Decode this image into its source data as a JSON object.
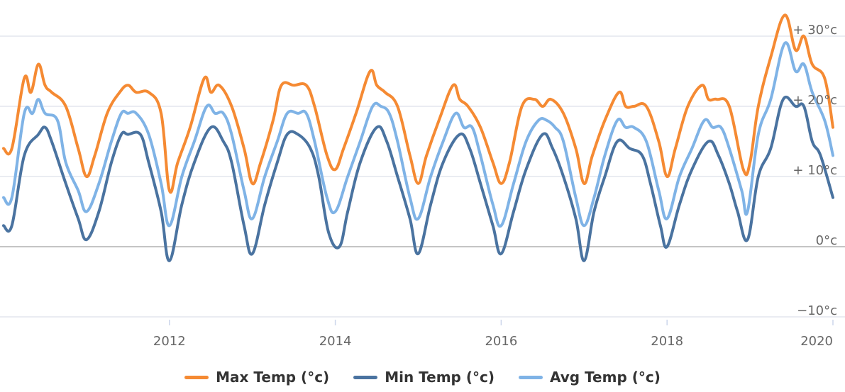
{
  "chart_data": {
    "type": "line",
    "y_axis": {
      "min": -10,
      "max": 35,
      "ticks": [
        {
          "value": -10,
          "label": "−10°c"
        },
        {
          "value": 0,
          "label": "0°c"
        },
        {
          "value": 10,
          "label": "+ 10°c"
        },
        {
          "value": 20,
          "label": "+ 20°c"
        },
        {
          "value": 30,
          "label": "+ 30°c"
        }
      ],
      "position": "right"
    },
    "x_axis": {
      "min": 2010.0,
      "max": 2020.0,
      "ticks": [
        {
          "value": 2012,
          "label": "2012"
        },
        {
          "value": 2014,
          "label": "2014"
        },
        {
          "value": 2016,
          "label": "2016"
        },
        {
          "value": 2018,
          "label": "2018"
        },
        {
          "value": 2020,
          "label": "2020"
        }
      ]
    },
    "grid": true,
    "legend": "bottom-center",
    "series": [
      {
        "name": "Max Temp (°c)",
        "color": "#f58a33",
        "points": [
          [
            2010.0,
            14
          ],
          [
            2010.1,
            14
          ],
          [
            2010.25,
            24
          ],
          [
            2010.33,
            22
          ],
          [
            2010.42,
            26
          ],
          [
            2010.5,
            23
          ],
          [
            2010.58,
            22
          ],
          [
            2010.75,
            20
          ],
          [
            2010.9,
            14
          ],
          [
            2011.0,
            10
          ],
          [
            2011.1,
            13
          ],
          [
            2011.25,
            19
          ],
          [
            2011.4,
            22
          ],
          [
            2011.5,
            23
          ],
          [
            2011.6,
            22
          ],
          [
            2011.75,
            22
          ],
          [
            2011.9,
            19
          ],
          [
            2012.0,
            8
          ],
          [
            2012.1,
            12
          ],
          [
            2012.25,
            17
          ],
          [
            2012.42,
            24
          ],
          [
            2012.5,
            22
          ],
          [
            2012.6,
            23
          ],
          [
            2012.75,
            20
          ],
          [
            2012.9,
            14
          ],
          [
            2013.0,
            9
          ],
          [
            2013.1,
            12
          ],
          [
            2013.25,
            18
          ],
          [
            2013.35,
            23
          ],
          [
            2013.5,
            23
          ],
          [
            2013.65,
            23
          ],
          [
            2013.75,
            20
          ],
          [
            2013.9,
            13
          ],
          [
            2014.0,
            11
          ],
          [
            2014.1,
            14
          ],
          [
            2014.25,
            19
          ],
          [
            2014.42,
            25
          ],
          [
            2014.5,
            23
          ],
          [
            2014.6,
            22
          ],
          [
            2014.75,
            20
          ],
          [
            2014.9,
            13
          ],
          [
            2015.0,
            9
          ],
          [
            2015.1,
            13
          ],
          [
            2015.25,
            18
          ],
          [
            2015.42,
            23
          ],
          [
            2015.5,
            21
          ],
          [
            2015.6,
            20
          ],
          [
            2015.75,
            17
          ],
          [
            2015.9,
            12
          ],
          [
            2016.0,
            9
          ],
          [
            2016.1,
            12
          ],
          [
            2016.25,
            20
          ],
          [
            2016.4,
            21
          ],
          [
            2016.5,
            20
          ],
          [
            2016.6,
            21
          ],
          [
            2016.75,
            19
          ],
          [
            2016.9,
            14
          ],
          [
            2017.0,
            9
          ],
          [
            2017.1,
            13
          ],
          [
            2017.25,
            18
          ],
          [
            2017.42,
            22
          ],
          [
            2017.5,
            20
          ],
          [
            2017.6,
            20
          ],
          [
            2017.75,
            20
          ],
          [
            2017.9,
            15
          ],
          [
            2018.0,
            10
          ],
          [
            2018.1,
            14
          ],
          [
            2018.25,
            20
          ],
          [
            2018.42,
            23
          ],
          [
            2018.5,
            21
          ],
          [
            2018.6,
            21
          ],
          [
            2018.75,
            20
          ],
          [
            2018.92,
            11
          ],
          [
            2019.0,
            12
          ],
          [
            2019.1,
            20
          ],
          [
            2019.25,
            27
          ],
          [
            2019.42,
            33
          ],
          [
            2019.55,
            28
          ],
          [
            2019.65,
            30
          ],
          [
            2019.75,
            26
          ],
          [
            2019.9,
            24
          ],
          [
            2020.0,
            17
          ]
        ]
      },
      {
        "name": "Min Temp (°c)",
        "color": "#4a73a0",
        "points": [
          [
            2010.0,
            3
          ],
          [
            2010.1,
            3
          ],
          [
            2010.25,
            13
          ],
          [
            2010.42,
            16
          ],
          [
            2010.5,
            17
          ],
          [
            2010.58,
            15
          ],
          [
            2010.75,
            9
          ],
          [
            2010.9,
            4
          ],
          [
            2011.0,
            1
          ],
          [
            2011.15,
            5
          ],
          [
            2011.3,
            12
          ],
          [
            2011.42,
            16
          ],
          [
            2011.5,
            16
          ],
          [
            2011.65,
            16
          ],
          [
            2011.75,
            12
          ],
          [
            2011.9,
            5
          ],
          [
            2012.0,
            -2
          ],
          [
            2012.15,
            6
          ],
          [
            2012.3,
            12
          ],
          [
            2012.5,
            17
          ],
          [
            2012.65,
            15
          ],
          [
            2012.75,
            12
          ],
          [
            2012.9,
            3
          ],
          [
            2013.0,
            -1
          ],
          [
            2013.15,
            6
          ],
          [
            2013.3,
            12
          ],
          [
            2013.42,
            16
          ],
          [
            2013.55,
            16
          ],
          [
            2013.7,
            14
          ],
          [
            2013.8,
            10
          ],
          [
            2013.92,
            2
          ],
          [
            2014.05,
            0
          ],
          [
            2014.15,
            5
          ],
          [
            2014.3,
            12
          ],
          [
            2014.5,
            17
          ],
          [
            2014.62,
            15
          ],
          [
            2014.75,
            10
          ],
          [
            2014.9,
            4
          ],
          [
            2015.0,
            -1
          ],
          [
            2015.15,
            6
          ],
          [
            2015.3,
            12
          ],
          [
            2015.5,
            16
          ],
          [
            2015.62,
            14
          ],
          [
            2015.75,
            9
          ],
          [
            2015.9,
            3
          ],
          [
            2016.0,
            -1
          ],
          [
            2016.15,
            5
          ],
          [
            2016.3,
            11
          ],
          [
            2016.5,
            16
          ],
          [
            2016.62,
            14
          ],
          [
            2016.75,
            10
          ],
          [
            2016.9,
            4
          ],
          [
            2017.0,
            -2
          ],
          [
            2017.12,
            5
          ],
          [
            2017.25,
            10
          ],
          [
            2017.4,
            15
          ],
          [
            2017.55,
            14
          ],
          [
            2017.7,
            13
          ],
          [
            2017.8,
            9
          ],
          [
            2017.92,
            3
          ],
          [
            2018.0,
            0
          ],
          [
            2018.15,
            6
          ],
          [
            2018.3,
            11
          ],
          [
            2018.5,
            15
          ],
          [
            2018.62,
            13
          ],
          [
            2018.75,
            9
          ],
          [
            2018.85,
            5
          ],
          [
            2018.97,
            1
          ],
          [
            2019.1,
            10
          ],
          [
            2019.25,
            14
          ],
          [
            2019.4,
            21
          ],
          [
            2019.55,
            20
          ],
          [
            2019.65,
            20
          ],
          [
            2019.75,
            15
          ],
          [
            2019.85,
            13
          ],
          [
            2020.0,
            7
          ]
        ]
      },
      {
        "name": "Avg Temp (°c)",
        "color": "#7fb3e6",
        "points": [
          [
            2010.0,
            7
          ],
          [
            2010.1,
            7
          ],
          [
            2010.25,
            19
          ],
          [
            2010.35,
            19
          ],
          [
            2010.42,
            21
          ],
          [
            2010.5,
            19
          ],
          [
            2010.65,
            18
          ],
          [
            2010.75,
            12
          ],
          [
            2010.9,
            8
          ],
          [
            2011.0,
            5
          ],
          [
            2011.15,
            9
          ],
          [
            2011.3,
            15
          ],
          [
            2011.42,
            19
          ],
          [
            2011.5,
            19
          ],
          [
            2011.6,
            19
          ],
          [
            2011.75,
            16
          ],
          [
            2011.9,
            9
          ],
          [
            2012.0,
            3
          ],
          [
            2012.15,
            10
          ],
          [
            2012.3,
            15
          ],
          [
            2012.45,
            20
          ],
          [
            2012.55,
            19
          ],
          [
            2012.65,
            19
          ],
          [
            2012.75,
            16
          ],
          [
            2012.9,
            8
          ],
          [
            2013.0,
            4
          ],
          [
            2013.15,
            10
          ],
          [
            2013.3,
            15
          ],
          [
            2013.42,
            19
          ],
          [
            2013.55,
            19
          ],
          [
            2013.65,
            19
          ],
          [
            2013.75,
            15
          ],
          [
            2013.9,
            7
          ],
          [
            2014.0,
            5
          ],
          [
            2014.15,
            10
          ],
          [
            2014.3,
            15
          ],
          [
            2014.45,
            20
          ],
          [
            2014.55,
            20
          ],
          [
            2014.65,
            19
          ],
          [
            2014.75,
            15
          ],
          [
            2014.9,
            7
          ],
          [
            2015.0,
            4
          ],
          [
            2015.15,
            10
          ],
          [
            2015.3,
            15
          ],
          [
            2015.45,
            19
          ],
          [
            2015.55,
            17
          ],
          [
            2015.65,
            17
          ],
          [
            2015.75,
            13
          ],
          [
            2015.9,
            6
          ],
          [
            2016.0,
            3
          ],
          [
            2016.15,
            9
          ],
          [
            2016.3,
            15
          ],
          [
            2016.45,
            18
          ],
          [
            2016.55,
            18
          ],
          [
            2016.65,
            17
          ],
          [
            2016.75,
            15
          ],
          [
            2016.9,
            7
          ],
          [
            2017.0,
            3
          ],
          [
            2017.12,
            7
          ],
          [
            2017.25,
            13
          ],
          [
            2017.4,
            18
          ],
          [
            2017.5,
            17
          ],
          [
            2017.6,
            17
          ],
          [
            2017.75,
            15
          ],
          [
            2017.9,
            8
          ],
          [
            2018.0,
            4
          ],
          [
            2018.15,
            10
          ],
          [
            2018.3,
            14
          ],
          [
            2018.45,
            18
          ],
          [
            2018.55,
            17
          ],
          [
            2018.65,
            17
          ],
          [
            2018.75,
            14
          ],
          [
            2018.9,
            8
          ],
          [
            2018.97,
            5
          ],
          [
            2019.1,
            16
          ],
          [
            2019.25,
            21
          ],
          [
            2019.42,
            29
          ],
          [
            2019.55,
            25
          ],
          [
            2019.65,
            26
          ],
          [
            2019.75,
            22
          ],
          [
            2019.9,
            18
          ],
          [
            2020.0,
            13
          ]
        ]
      }
    ]
  }
}
